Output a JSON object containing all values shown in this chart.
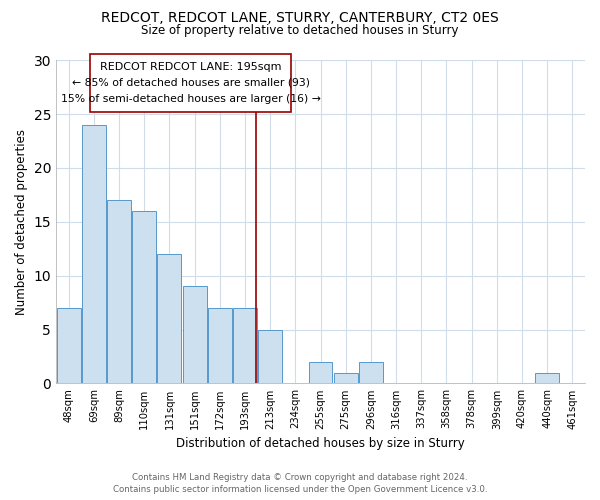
{
  "title": "REDCOT, REDCOT LANE, STURRY, CANTERBURY, CT2 0ES",
  "subtitle": "Size of property relative to detached houses in Sturry",
  "xlabel": "Distribution of detached houses by size in Sturry",
  "ylabel": "Number of detached properties",
  "bar_labels": [
    "48sqm",
    "69sqm",
    "89sqm",
    "110sqm",
    "131sqm",
    "151sqm",
    "172sqm",
    "193sqm",
    "213sqm",
    "234sqm",
    "255sqm",
    "275sqm",
    "296sqm",
    "316sqm",
    "337sqm",
    "358sqm",
    "378sqm",
    "399sqm",
    "420sqm",
    "440sqm",
    "461sqm"
  ],
  "bar_values": [
    7,
    24,
    17,
    16,
    12,
    9,
    7,
    7,
    5,
    0,
    2,
    1,
    2,
    0,
    0,
    0,
    0,
    0,
    0,
    1,
    0
  ],
  "bar_color": "#cce0f0",
  "bar_edge_color": "#5599cc",
  "annotation_line_color": "#990000",
  "annotation_box_text_line1": "REDCOT REDCOT LANE: 195sqm",
  "annotation_box_text_line2": "← 85% of detached houses are smaller (93)",
  "annotation_box_text_line3": "15% of semi-detached houses are larger (16) →",
  "ylim": [
    0,
    30
  ],
  "yticks": [
    0,
    5,
    10,
    15,
    20,
    25,
    30
  ],
  "footer_line1": "Contains HM Land Registry data © Crown copyright and database right 2024.",
  "footer_line2": "Contains public sector information licensed under the Open Government Licence v3.0.",
  "background_color": "#ffffff",
  "grid_color": "#d0dce8",
  "n_bars": 21,
  "property_bar_index": 7,
  "red_line_bar_index": 7
}
